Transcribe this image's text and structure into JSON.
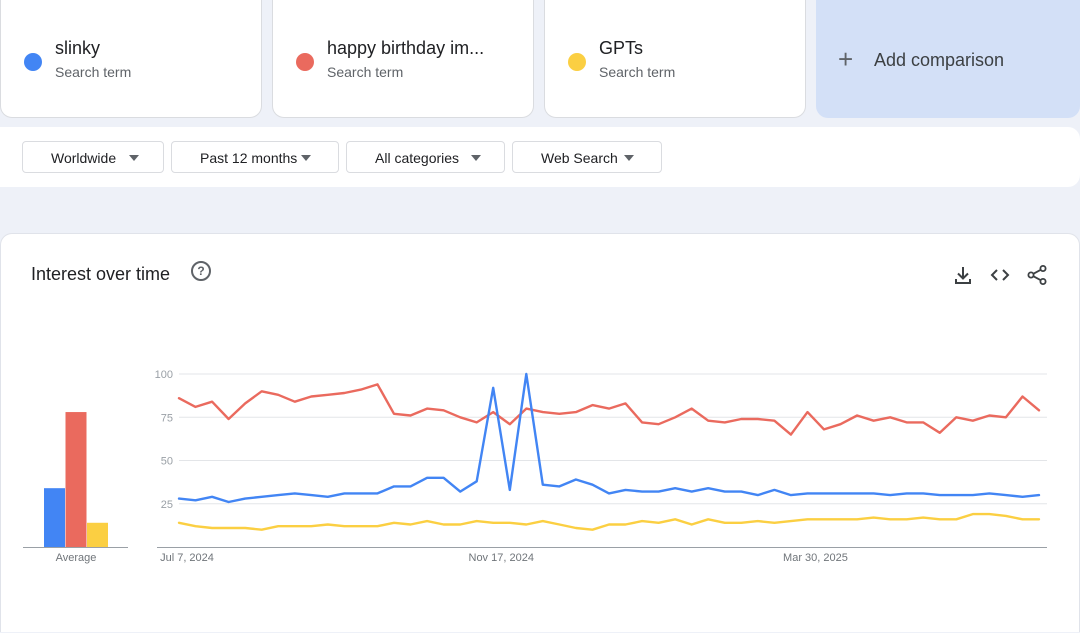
{
  "search_terms": [
    {
      "name": "slinky",
      "sub": "Search term",
      "color": "#4285f4"
    },
    {
      "name": "happy birthday im...",
      "sub": "Search term",
      "color": "#ea6a5e"
    },
    {
      "name": "GPTs",
      "sub": "Search term",
      "color": "#fbcf42"
    }
  ],
  "add_comparison": {
    "icon": "plus-icon",
    "label": "Add comparison"
  },
  "filters": [
    {
      "label": "Worldwide"
    },
    {
      "label": "Past 12 months"
    },
    {
      "label": "All categories"
    },
    {
      "label": "Web Search"
    }
  ],
  "panel": {
    "title": "Interest over time",
    "help_icon": "?",
    "icons": [
      "download-icon",
      "embed-code-icon",
      "share-icon"
    ]
  },
  "chart_data": [
    {
      "type": "bar",
      "xlabel": "Average",
      "series": [
        {
          "name": "slinky",
          "color": "#4285f4",
          "value": 34
        },
        {
          "name": "happy birthday im...",
          "color": "#ea6a5e",
          "value": 78
        },
        {
          "name": "GPTs",
          "color": "#fbcf42",
          "value": 14
        }
      ]
    },
    {
      "type": "line",
      "ylim": [
        0,
        100
      ],
      "yticks": [
        100,
        75,
        50,
        25
      ],
      "x_start": "2024-07-07",
      "x_step_days": 7,
      "xtick_labels": [
        {
          "label": "Jul 7, 2024",
          "date": "2024-07-07"
        },
        {
          "label": "Nov 17, 2024",
          "date": "2024-11-17"
        },
        {
          "label": "Mar 30, 2025",
          "date": "2025-03-30"
        }
      ],
      "series": [
        {
          "name": "happy birthday im...",
          "color": "#ea6a5e",
          "values": [
            86,
            81,
            84,
            74,
            83,
            90,
            88,
            84,
            87,
            88,
            89,
            91,
            94,
            77,
            76,
            80,
            79,
            75,
            72,
            78,
            71,
            80,
            78,
            77,
            78,
            82,
            80,
            83,
            72,
            71,
            75,
            80,
            73,
            72,
            74,
            74,
            73,
            65,
            78,
            68,
            71,
            76,
            73,
            75,
            72,
            72,
            66,
            75,
            73,
            76,
            75,
            87,
            79
          ]
        },
        {
          "name": "slinky",
          "color": "#4285f4",
          "values": [
            28,
            27,
            29,
            26,
            28,
            29,
            30,
            31,
            30,
            29,
            31,
            31,
            31,
            35,
            35,
            40,
            40,
            32,
            38,
            92,
            33,
            100,
            36,
            35,
            39,
            36,
            31,
            33,
            32,
            32,
            34,
            32,
            34,
            32,
            32,
            30,
            33,
            30,
            31,
            31,
            31,
            31,
            31,
            30,
            31,
            31,
            30,
            30,
            30,
            31,
            30,
            29,
            30
          ]
        },
        {
          "name": "GPTs",
          "color": "#fbcf42",
          "values": [
            14,
            12,
            11,
            11,
            11,
            10,
            12,
            12,
            12,
            13,
            12,
            12,
            12,
            14,
            13,
            15,
            13,
            13,
            15,
            14,
            14,
            13,
            15,
            13,
            11,
            10,
            13,
            13,
            15,
            14,
            16,
            13,
            16,
            14,
            14,
            15,
            14,
            15,
            16,
            16,
            16,
            16,
            17,
            16,
            16,
            17,
            16,
            16,
            19,
            19,
            18,
            16,
            16
          ]
        }
      ]
    }
  ]
}
